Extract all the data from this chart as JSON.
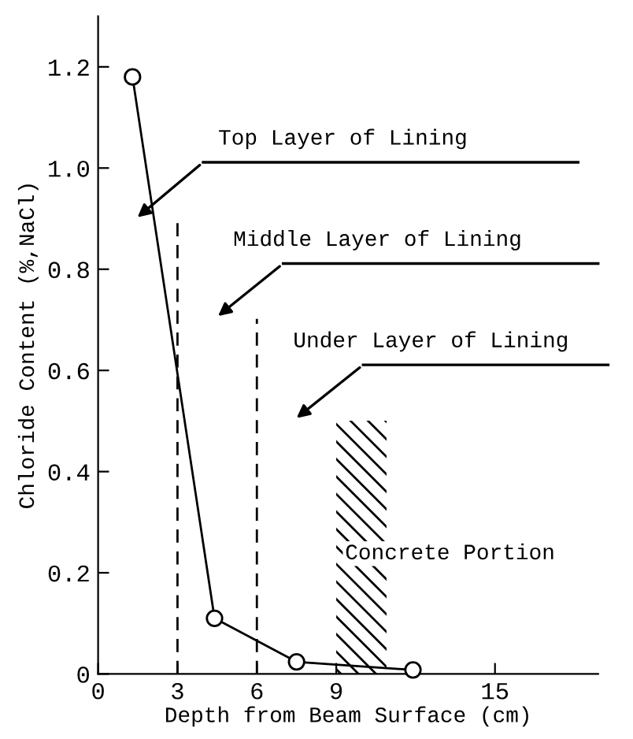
{
  "chart_data": {
    "type": "line",
    "xlabel": "Depth from Beam Surface (cm)",
    "ylabel": "Chloride Content (%,NaCl)",
    "x": [
      1.3,
      4.4,
      7.5,
      11.9
    ],
    "series": [
      {
        "color": "#000000",
        "values": [
          1.18,
          0.11,
          0.024,
          0.008
        ]
      }
    ],
    "marker": "circle",
    "line_style": "solid",
    "grid": false,
    "legend": false,
    "xlim": [
      0,
      18.9
    ],
    "xticks": [
      0,
      3,
      6,
      9,
      15
    ],
    "ylim": [
      0,
      1.3
    ],
    "yticks": [
      0,
      {
        "value": 0.2,
        "label": "0.2"
      },
      {
        "value": 0.4,
        "label": "0.4"
      },
      {
        "value": 0.6,
        "label": "0.6"
      },
      {
        "value": 0.8,
        "label": "0.8"
      },
      {
        "value": 1.0,
        "label": "1.0"
      },
      {
        "value": 1.2,
        "label": "1.2"
      }
    ],
    "ref_lines": [
      {
        "axis": "x",
        "value": 3,
        "line_style": "dashed",
        "color": "#000000"
      },
      {
        "axis": "x",
        "value": 6,
        "line_style": "dashed",
        "color": "#000000"
      }
    ],
    "bands": [
      {
        "axis": "x",
        "from": 9,
        "to": 10.9,
        "label": "Concrete Portion",
        "color": "#000000"
      }
    ],
    "annotations": [
      "Top Layer of Lining",
      "Middle Layer of Lining",
      "Under Layer of Lining"
    ]
  }
}
